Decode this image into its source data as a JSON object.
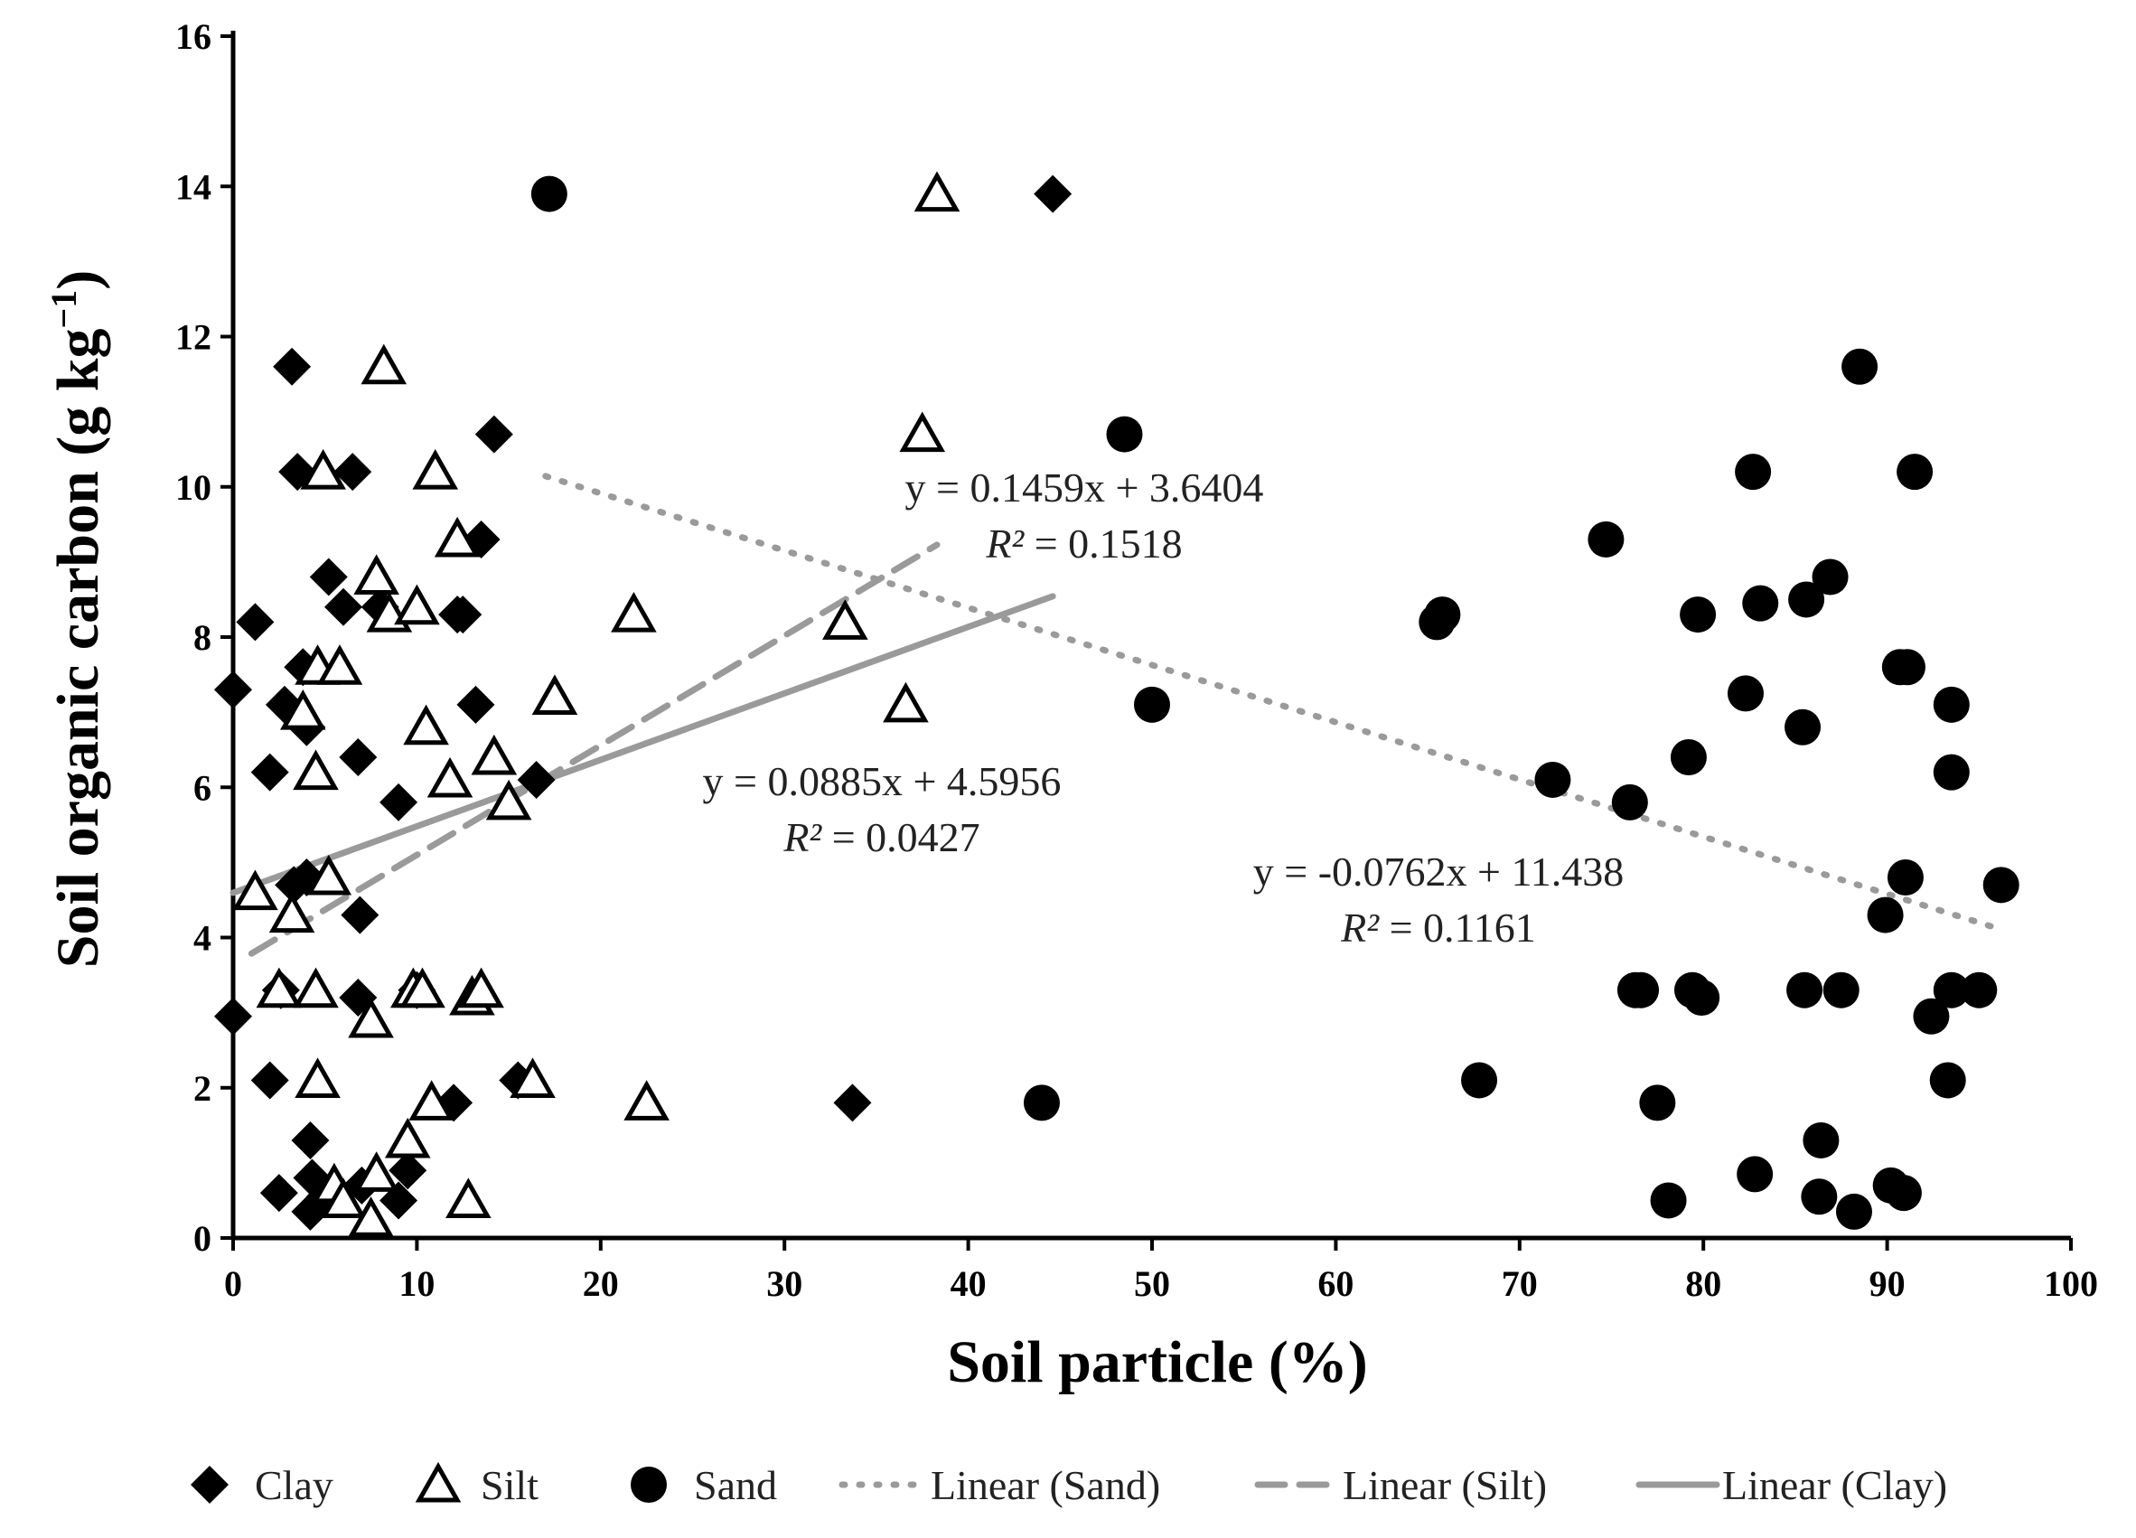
{
  "chart_data": {
    "type": "scatter",
    "title": "",
    "xlabel": "Soil particle (%)",
    "ylabel_main": "Soil organic carbon (g kg",
    "ylabel_sup": "−1",
    "ylabel_close": ")",
    "xlim": [
      0,
      100
    ],
    "ylim": [
      0,
      16
    ],
    "xticks": [
      0,
      10,
      20,
      30,
      40,
      50,
      60,
      70,
      80,
      90,
      100
    ],
    "yticks": [
      0,
      2,
      4,
      6,
      8,
      10,
      12,
      14,
      16
    ],
    "grid": false,
    "legend_position": "bottom",
    "series": [
      {
        "name": "Clay",
        "marker": "diamond",
        "color": "#000000",
        "points": [
          [
            0,
            7.3
          ],
          [
            0,
            2.95
          ],
          [
            1.2,
            8.2
          ],
          [
            2,
            6.2
          ],
          [
            2,
            2.1
          ],
          [
            2.5,
            0.6
          ],
          [
            2.6,
            3.3
          ],
          [
            2.8,
            7.1
          ],
          [
            3.2,
            11.6
          ],
          [
            3.3,
            4.7
          ],
          [
            3.5,
            10.2
          ],
          [
            3.8,
            7.6
          ],
          [
            4,
            6.8
          ],
          [
            4,
            4.8
          ],
          [
            4.2,
            1.3
          ],
          [
            4.2,
            0.35
          ],
          [
            4.3,
            0.8
          ],
          [
            5,
            0.55
          ],
          [
            5.2,
            8.8
          ],
          [
            6,
            8.4
          ],
          [
            6.5,
            10.2
          ],
          [
            6.8,
            6.4
          ],
          [
            6.8,
            3.2
          ],
          [
            6.9,
            4.3
          ],
          [
            7,
            0.7
          ],
          [
            8,
            8.4
          ],
          [
            9,
            5.8
          ],
          [
            9,
            0.5
          ],
          [
            9.5,
            0.9
          ],
          [
            10,
            3.3
          ],
          [
            12,
            1.8
          ],
          [
            12.2,
            8.3
          ],
          [
            12.5,
            8.3
          ],
          [
            13.2,
            7.1
          ],
          [
            13.5,
            9.3
          ],
          [
            14.2,
            10.7
          ],
          [
            15.5,
            2.1
          ],
          [
            16.5,
            6.1
          ],
          [
            33.7,
            1.8
          ],
          [
            44.6,
            13.9
          ]
        ]
      },
      {
        "name": "Silt",
        "marker": "triangle-open",
        "color": "#000000",
        "points": [
          [
            1.2,
            4.6
          ],
          [
            2.5,
            3.3
          ],
          [
            3.2,
            4.3
          ],
          [
            3.8,
            7.0
          ],
          [
            4.5,
            3.3
          ],
          [
            4.5,
            6.2
          ],
          [
            4.6,
            2.1
          ],
          [
            4.6,
            7.6
          ],
          [
            4.9,
            10.2
          ],
          [
            5.2,
            4.8
          ],
          [
            5.5,
            0.7
          ],
          [
            5.8,
            7.6
          ],
          [
            6,
            0.5
          ],
          [
            7.5,
            2.9
          ],
          [
            7.5,
            0.25
          ],
          [
            7.8,
            0.85
          ],
          [
            7.8,
            8.8
          ],
          [
            8.2,
            11.6
          ],
          [
            8.5,
            8.3
          ],
          [
            9.5,
            1.3
          ],
          [
            9.8,
            3.3
          ],
          [
            10,
            8.4
          ],
          [
            10.3,
            3.3
          ],
          [
            10.5,
            6.8
          ],
          [
            10.8,
            1.8
          ],
          [
            11,
            10.2
          ],
          [
            11.8,
            6.1
          ],
          [
            12.2,
            9.3
          ],
          [
            12.8,
            0.5
          ],
          [
            13,
            3.2
          ],
          [
            13.5,
            3.3
          ],
          [
            14.2,
            6.4
          ],
          [
            15,
            5.8
          ],
          [
            16.3,
            2.1
          ],
          [
            17.5,
            7.2
          ],
          [
            21.8,
            8.3
          ],
          [
            22.5,
            1.8
          ],
          [
            33.3,
            8.2
          ],
          [
            36.6,
            7.1
          ],
          [
            37.5,
            10.7
          ],
          [
            38.3,
            13.9
          ]
        ]
      },
      {
        "name": "Sand",
        "marker": "circle",
        "color": "#000000",
        "points": [
          [
            17.2,
            13.9
          ],
          [
            44,
            1.8
          ],
          [
            48.5,
            10.7
          ],
          [
            50,
            7.1
          ],
          [
            65.5,
            8.2
          ],
          [
            65.8,
            8.3
          ],
          [
            67.8,
            2.1
          ],
          [
            71.8,
            6.1
          ],
          [
            74.7,
            9.3
          ],
          [
            76,
            5.8
          ],
          [
            76.3,
            3.3
          ],
          [
            76.6,
            3.3
          ],
          [
            77.5,
            1.8
          ],
          [
            78.1,
            0.5
          ],
          [
            79.2,
            6.4
          ],
          [
            79.4,
            3.3
          ],
          [
            79.7,
            8.3
          ],
          [
            79.9,
            3.2
          ],
          [
            82.3,
            7.25
          ],
          [
            82.7,
            10.2
          ],
          [
            82.8,
            0.85
          ],
          [
            83.1,
            8.45
          ],
          [
            85.4,
            6.8
          ],
          [
            85.5,
            3.3
          ],
          [
            85.6,
            8.5
          ],
          [
            86.3,
            0.55
          ],
          [
            86.4,
            1.3
          ],
          [
            86.9,
            8.8
          ],
          [
            87.5,
            3.3
          ],
          [
            88.2,
            0.35
          ],
          [
            88.5,
            11.6
          ],
          [
            89.9,
            4.3
          ],
          [
            90.2,
            0.7
          ],
          [
            90.7,
            7.6
          ],
          [
            90.9,
            0.6
          ],
          [
            91,
            4.8
          ],
          [
            91.1,
            7.6
          ],
          [
            91.5,
            10.2
          ],
          [
            92.4,
            2.95
          ],
          [
            93.3,
            2.1
          ],
          [
            93.5,
            3.3
          ],
          [
            93.5,
            7.1
          ],
          [
            93.5,
            6.2
          ],
          [
            95,
            3.3
          ],
          [
            96.2,
            4.7
          ]
        ]
      }
    ],
    "trendlines": [
      {
        "name": "Linear (Sand)",
        "style": "dotted",
        "color": "#9a9a9a",
        "slope": -0.0762,
        "intercept": 11.438,
        "x_range": [
          17,
          96
        ],
        "equation": "y = -0.0762x + 11.438",
        "r2_label": "R²",
        "r2_value": " = 0.1161"
      },
      {
        "name": "Linear (Silt)",
        "style": "dashed",
        "color": "#9a9a9a",
        "slope": 0.1459,
        "intercept": 3.6404,
        "x_range": [
          1,
          38.3
        ],
        "equation": "y = 0.1459x + 3.6404",
        "r2_label": "R²",
        "r2_value": " = 0.1518"
      },
      {
        "name": "Linear (Clay)",
        "style": "solid",
        "color": "#9a9a9a",
        "slope": 0.0885,
        "intercept": 4.5956,
        "x_range": [
          0,
          44.6
        ],
        "equation": "y = 0.0885x + 4.5956",
        "r2_label": "R²",
        "r2_value": " = 0.0427"
      }
    ],
    "legend": [
      "Clay",
      "Silt",
      "Sand",
      "Linear (Sand)",
      "Linear (Silt)",
      "Linear (Clay)"
    ]
  }
}
